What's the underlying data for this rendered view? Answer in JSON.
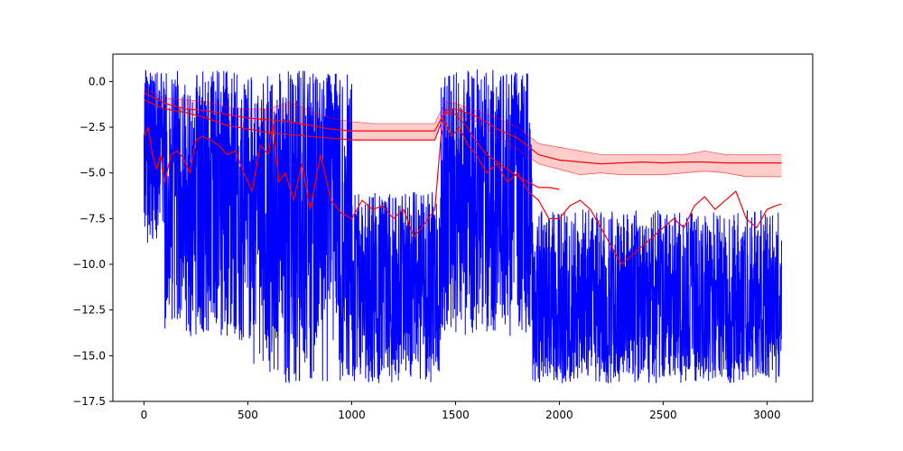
{
  "chart_data": {
    "type": "line",
    "title": "",
    "xlabel": "",
    "ylabel": "",
    "xlim": [
      -150,
      3220
    ],
    "ylim": [
      -17.5,
      1.5
    ],
    "grid": false,
    "legend": "none",
    "x_ticks": [
      0,
      500,
      1000,
      1500,
      2000,
      2500,
      3000
    ],
    "x_tick_labels": [
      "0",
      "500",
      "1000",
      "1500",
      "2000",
      "2500",
      "3000"
    ],
    "y_ticks": [
      0.0,
      -2.5,
      -5.0,
      -7.5,
      -10.0,
      -12.5,
      -15.0,
      -17.5
    ],
    "y_tick_labels": [
      "0.0",
      "−2.5",
      "−5.0",
      "−7.5",
      "−10.0",
      "−12.5",
      "−15.0",
      "−17.5"
    ],
    "colors": {
      "raw": "#0000ff",
      "smoothed": "#ff0000",
      "band_fill": "#ffcccc"
    },
    "series": [
      {
        "role": "raw-signal",
        "style": "noisy-line",
        "x_range": [
          0,
          3070
        ],
        "n_points": 3071,
        "segments": [
          {
            "x": [
              0,
              100
            ],
            "center": -3.0,
            "low": -9.0,
            "high": 0.7
          },
          {
            "x": [
              100,
              450
            ],
            "center": -5.0,
            "low": -14.0,
            "high": 0.6
          },
          {
            "x": [
              450,
              600
            ],
            "center": -6.5,
            "low": -15.5,
            "high": 0.3
          },
          {
            "x": [
              600,
              1000
            ],
            "center": -6.5,
            "low": -16.5,
            "high": 0.6
          },
          {
            "x": [
              1000,
              1430
            ],
            "center": -12.0,
            "low": -16.5,
            "high": -6.0
          },
          {
            "x": [
              1430,
              1870
            ],
            "center": -5.5,
            "low": -14.0,
            "high": 0.7
          },
          {
            "x": [
              1870,
              3070
            ],
            "center": -12.5,
            "low": -16.5,
            "high": -7.0
          }
        ]
      },
      {
        "role": "smoothed-signal",
        "style": "line",
        "x": [
          0,
          20,
          40,
          60,
          80,
          100,
          130,
          160,
          190,
          220,
          250,
          280,
          320,
          360,
          400,
          440,
          480,
          520,
          560,
          600,
          620,
          650,
          680,
          720,
          760,
          800,
          850,
          900,
          950,
          1000,
          1050,
          1100,
          1150,
          1200,
          1250,
          1300,
          1350,
          1400,
          1430,
          1450,
          1480,
          1520,
          1560,
          1600,
          1650,
          1700,
          1750,
          1800,
          1850,
          1900,
          1950,
          2000,
          2050,
          2100,
          2150,
          2200,
          2250,
          2300,
          2350,
          2400,
          2450,
          2500,
          2550,
          2600,
          2650,
          2700,
          2750,
          2800,
          2850,
          2900,
          2950,
          3000,
          3040,
          3070
        ],
        "y": [
          -3.0,
          -2.5,
          -4.0,
          -4.8,
          -4.0,
          -5.5,
          -4.0,
          -3.8,
          -4.2,
          -5.0,
          -3.2,
          -3.0,
          -3.2,
          -3.5,
          -4.0,
          -3.8,
          -5.0,
          -6.0,
          -3.5,
          -4.0,
          -2.3,
          -5.5,
          -5.0,
          -6.5,
          -4.5,
          -7.0,
          -4.0,
          -6.5,
          -7.2,
          -7.5,
          -6.5,
          -7.0,
          -6.8,
          -7.5,
          -7.0,
          -8.5,
          -7.8,
          -7.0,
          -3.0,
          -2.2,
          -3.0,
          -2.5,
          -3.5,
          -4.0,
          -5.0,
          -4.5,
          -5.5,
          -5.0,
          -6.0,
          -6.5,
          -7.5,
          -7.5,
          -6.8,
          -6.5,
          -7.0,
          -8.0,
          -9.0,
          -10.0,
          -9.5,
          -9.0,
          -8.5,
          -8.0,
          -7.5,
          -8.0,
          -6.8,
          -6.3,
          -7.0,
          -6.5,
          -6.0,
          -7.5,
          -8.0,
          -7.0,
          -6.8,
          -6.7
        ]
      },
      {
        "role": "running-mean",
        "style": "line",
        "x": [
          0,
          100,
          200,
          300,
          400,
          500,
          600,
          700,
          800,
          900,
          1000,
          1100,
          1200,
          1300,
          1400,
          1450,
          1500,
          1600,
          1700,
          1800,
          1900,
          2000,
          2100,
          2200,
          2300,
          2400,
          2500,
          2600,
          2700,
          2800,
          2900,
          3000,
          3070
        ],
        "y": [
          -0.6,
          -1.2,
          -1.5,
          -1.6,
          -1.8,
          -2.0,
          -2.1,
          -2.2,
          -2.4,
          -2.6,
          -2.7,
          -2.7,
          -2.7,
          -2.7,
          -2.7,
          -1.6,
          -1.5,
          -1.9,
          -2.6,
          -3.1,
          -4.0,
          -4.3,
          -4.4,
          -4.5,
          -4.45,
          -4.4,
          -4.45,
          -4.4,
          -4.4,
          -4.45,
          -4.45,
          -4.45,
          -4.45
        ]
      },
      {
        "role": "band",
        "style": "filled-band",
        "x": [
          0,
          100,
          200,
          300,
          400,
          500,
          600,
          700,
          800,
          900,
          1000,
          1100,
          1200,
          1300,
          1400,
          1450,
          1500,
          1600,
          1700,
          1800,
          1900,
          2000,
          2100,
          2200,
          2300,
          2400,
          2500,
          2600,
          2700,
          2800,
          2900,
          3000,
          3070
        ],
        "upper": [
          -0.4,
          -0.9,
          -1.0,
          -1.1,
          -1.4,
          -1.5,
          -1.5,
          -1.1,
          -1.6,
          -2.0,
          -2.2,
          -2.3,
          -2.3,
          -2.3,
          -2.3,
          -1.1,
          -1.2,
          -1.6,
          -2.0,
          -2.5,
          -3.4,
          -3.6,
          -3.8,
          -4.0,
          -4.0,
          -4.0,
          -4.0,
          -4.0,
          -3.8,
          -4.0,
          -4.0,
          -4.0,
          -4.0
        ],
        "lower": [
          -1.0,
          -1.5,
          -1.7,
          -2.0,
          -2.4,
          -2.6,
          -2.8,
          -2.9,
          -3.0,
          -3.1,
          -3.2,
          -3.2,
          -3.2,
          -3.2,
          -3.2,
          -1.7,
          -1.8,
          -2.2,
          -3.0,
          -3.7,
          -4.5,
          -4.8,
          -5.1,
          -5.0,
          -5.1,
          -5.1,
          -5.1,
          -5.0,
          -4.9,
          -5.0,
          -5.2,
          -5.2,
          -5.2
        ]
      },
      {
        "role": "lower-envelope",
        "style": "line",
        "x": [
          0,
          100,
          200,
          300,
          400,
          500,
          600,
          700,
          800,
          900,
          1000,
          1100,
          1200,
          1300,
          1400,
          1450,
          1500,
          1550,
          1600,
          1650,
          1700,
          1750,
          1800,
          1850,
          1900,
          1950,
          2000
        ],
        "y": [
          -1.0,
          -1.5,
          -1.7,
          -2.0,
          -2.4,
          -2.6,
          -2.8,
          -2.9,
          -3.0,
          -3.1,
          -3.2,
          -3.2,
          -3.2,
          -3.2,
          -3.2,
          -1.7,
          -1.8,
          -2.4,
          -3.3,
          -4.0,
          -4.4,
          -4.8,
          -5.2,
          -5.5,
          -5.8,
          -5.8,
          -5.9
        ]
      }
    ]
  }
}
